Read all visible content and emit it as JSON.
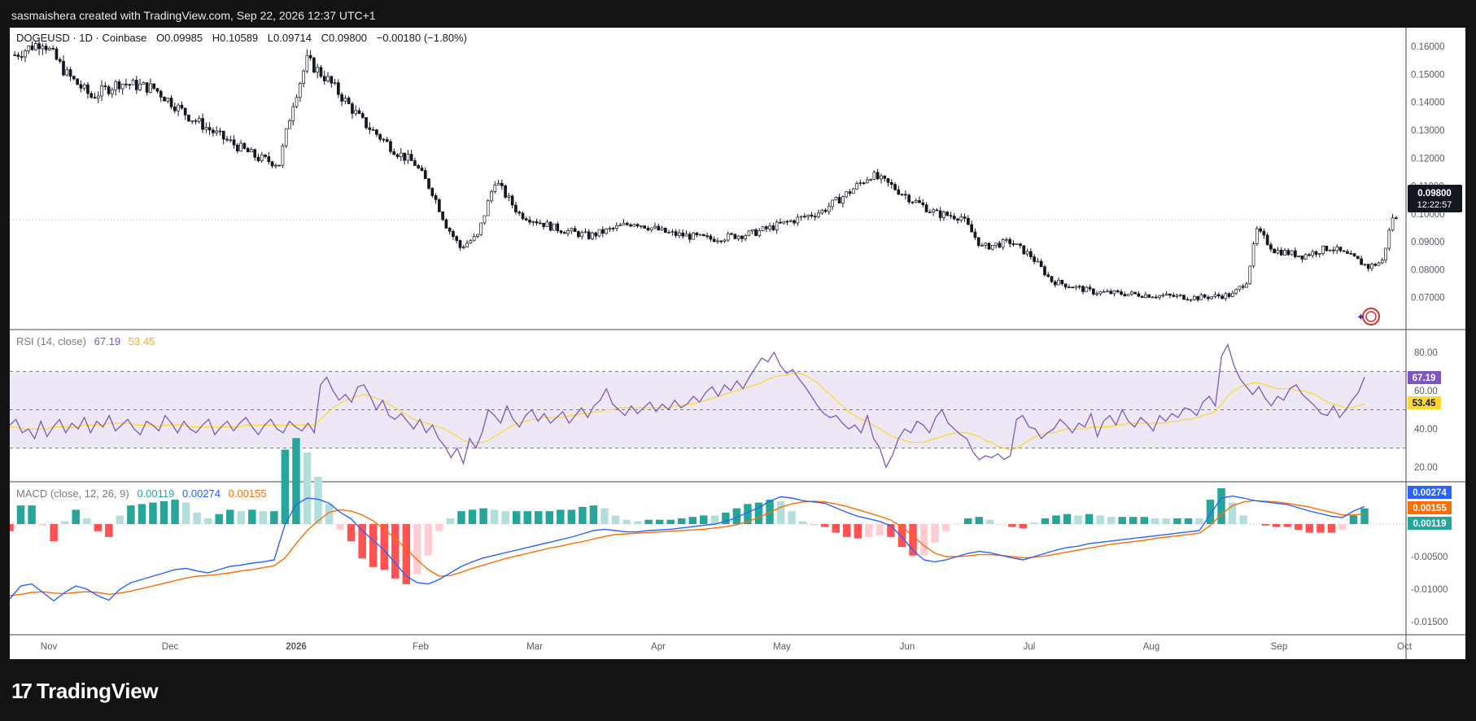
{
  "header": {
    "text": "sasmaishera created with TradingView.com, Sep 22, 2026 12:37 UTC+1"
  },
  "footer": {
    "brand": "TradingView",
    "logo_glyph": "17"
  },
  "legend": {
    "symbol": "DOGEUSD · 1D · Coinbase",
    "o_label": "O",
    "o_value": "0.09985",
    "h_label": "H",
    "h_value": "0.10589",
    "l_label": "L",
    "l_value": "0.09714",
    "c_label": "C",
    "c_value": "0.09800",
    "change": "−0.00180 (−1.80%)"
  },
  "price_badge": {
    "price": "0.09800",
    "countdown": "12:22:57"
  },
  "rsi_legend": {
    "label": "RSI (14, close)",
    "rsi_value": "67.19",
    "ma_value": "53.45"
  },
  "macd_legend": {
    "label": "MACD (close, 12, 26, 9)",
    "hist_value": "0.00119",
    "macd_value": "0.00274",
    "signal_value": "0.00155"
  },
  "colors": {
    "up": "#ffffff",
    "down": "#131722",
    "wick": "#131722",
    "rsi_line": "#7e57c2",
    "rsi_ma": "#fdd835",
    "rsi_band": "#ede7f6",
    "macd_line": "#2962ff",
    "signal_line": "#ff6d00",
    "hist_pos_strong": "#26a69a",
    "hist_pos_weak": "#b2dfdb",
    "hist_neg_strong": "#ff5252",
    "hist_neg_weak": "#ffcdd2"
  },
  "chart_data": [
    {
      "type": "candlestick",
      "title": "DOGEUSD · 1D · Coinbase",
      "ylim": [
        0.06,
        0.165
      ],
      "y_ticks": [
        "0.16000",
        "0.15000",
        "0.14000",
        "0.13000",
        "0.12000",
        "0.11000",
        "0.10000",
        "0.09000",
        "0.08000",
        "0.07000"
      ],
      "x_ticks": [
        "Nov",
        "Dec",
        "2026",
        "Feb",
        "Mar",
        "Apr",
        "May",
        "Jun",
        "Jul",
        "Aug",
        "Sep",
        "Oct"
      ],
      "last_price": 0.098,
      "grid": false,
      "close_path": [
        [
          0,
          0.157
        ],
        [
          8,
          0.162
        ],
        [
          15,
          0.15
        ],
        [
          22,
          0.142
        ],
        [
          30,
          0.147
        ],
        [
          40,
          0.145
        ],
        [
          50,
          0.135
        ],
        [
          60,
          0.127
        ],
        [
          70,
          0.12
        ],
        [
          76,
          0.118
        ],
        [
          80,
          0.14
        ],
        [
          84,
          0.155
        ],
        [
          90,
          0.148
        ],
        [
          100,
          0.133
        ],
        [
          110,
          0.122
        ],
        [
          115,
          0.118
        ],
        [
          120,
          0.108
        ],
        [
          124,
          0.096
        ],
        [
          128,
          0.088
        ],
        [
          133,
          0.092
        ],
        [
          138,
          0.112
        ],
        [
          145,
          0.1
        ],
        [
          155,
          0.095
        ],
        [
          165,
          0.092
        ],
        [
          178,
          0.097
        ],
        [
          188,
          0.093
        ],
        [
          200,
          0.091
        ],
        [
          212,
          0.093
        ],
        [
          222,
          0.097
        ],
        [
          232,
          0.101
        ],
        [
          240,
          0.108
        ],
        [
          246,
          0.114
        ],
        [
          252,
          0.11
        ],
        [
          258,
          0.105
        ],
        [
          265,
          0.1
        ],
        [
          272,
          0.099
        ],
        [
          278,
          0.088
        ],
        [
          286,
          0.09
        ],
        [
          292,
          0.085
        ],
        [
          298,
          0.076
        ],
        [
          310,
          0.072
        ],
        [
          325,
          0.071
        ],
        [
          340,
          0.07
        ],
        [
          350,
          0.071
        ],
        [
          354,
          0.076
        ],
        [
          357,
          0.094
        ],
        [
          362,
          0.087
        ],
        [
          370,
          0.085
        ],
        [
          378,
          0.088
        ],
        [
          385,
          0.084
        ],
        [
          389,
          0.081
        ],
        [
          393,
          0.083
        ],
        [
          396,
          0.099
        ],
        [
          397,
          0.098
        ]
      ],
      "n_days": 398
    },
    {
      "type": "line",
      "title": "RSI (14, close)",
      "ylim": [
        15,
        88
      ],
      "y_ticks": [
        "80.00",
        "60.00",
        "40.00",
        "20.00"
      ],
      "levels": [
        70,
        50,
        30
      ],
      "series": [
        {
          "name": "RSI",
          "values": [
            42,
            45,
            38,
            40,
            35,
            44,
            36,
            41,
            45,
            38,
            43,
            40,
            46,
            38,
            44,
            41,
            47,
            39,
            42,
            45,
            40,
            37,
            44,
            42,
            39,
            47,
            43,
            38,
            44,
            40,
            38,
            42,
            45,
            37,
            41,
            44,
            39,
            43,
            46,
            41,
            37,
            42,
            45,
            40,
            38,
            44,
            41,
            39,
            43,
            38,
            63,
            67,
            60,
            55,
            58,
            54,
            62,
            63,
            57,
            50,
            55,
            47,
            45,
            48,
            44,
            40,
            45,
            38,
            42,
            35,
            31,
            25,
            30,
            22,
            35,
            30,
            38,
            50,
            47,
            43,
            52,
            45,
            41,
            47,
            50,
            44,
            48,
            43,
            46,
            49,
            43,
            47,
            51,
            46,
            52,
            55,
            61,
            53,
            50,
            47,
            52,
            48,
            51,
            54,
            49,
            53,
            50,
            55,
            51,
            53,
            57,
            54,
            59,
            62,
            57,
            63,
            60,
            65,
            61,
            67,
            72,
            77,
            75,
            80,
            73,
            69,
            71,
            66,
            62,
            57,
            52,
            48,
            46,
            47,
            43,
            40,
            42,
            38,
            47,
            35,
            30,
            20,
            26,
            35,
            40,
            38,
            44,
            42,
            38,
            46,
            50,
            43,
            40,
            37,
            35,
            28,
            24,
            26,
            25,
            27,
            24,
            26,
            45,
            47,
            41,
            40,
            35,
            38,
            40,
            45,
            42,
            38,
            43,
            41,
            48,
            36,
            44,
            47,
            42,
            50,
            44,
            41,
            46,
            43,
            39,
            47,
            44,
            48,
            46,
            51,
            50,
            47,
            54,
            57,
            52,
            78,
            84,
            73,
            66,
            62,
            58,
            62,
            56,
            52,
            57,
            55,
            61,
            63,
            58,
            55,
            52,
            48,
            47,
            52,
            46,
            50,
            55,
            59,
            67
          ]
        },
        {
          "name": "MA",
          "values": [
            41,
            41,
            40,
            40,
            40,
            40,
            40,
            41,
            41,
            41,
            41,
            41,
            42,
            42,
            42,
            42,
            43,
            43,
            43,
            43,
            42,
            42,
            42,
            42,
            41,
            42,
            42,
            42,
            42,
            41,
            41,
            41,
            41,
            41,
            41,
            41,
            41,
            41,
            42,
            42,
            42,
            42,
            42,
            42,
            42,
            42,
            42,
            42,
            42,
            42,
            45,
            48,
            51,
            53,
            55,
            56,
            57,
            58,
            57,
            56,
            55,
            53,
            51,
            49,
            47,
            45,
            44,
            43,
            42,
            41,
            40,
            38,
            36,
            34,
            33,
            33,
            33,
            34,
            36,
            38,
            40,
            42,
            43,
            44,
            45,
            45,
            46,
            46,
            46,
            46,
            47,
            47,
            48,
            48,
            49,
            49,
            50,
            50,
            51,
            51,
            51,
            51,
            51,
            51,
            51,
            51,
            51,
            52,
            52,
            53,
            53,
            54,
            55,
            56,
            57,
            58,
            59,
            60,
            61,
            62,
            63,
            64,
            66,
            67,
            68,
            68,
            69,
            69,
            68,
            66,
            64,
            61,
            58,
            55,
            52,
            49,
            47,
            45,
            44,
            42,
            40,
            38,
            36,
            35,
            34,
            33,
            33,
            33,
            34,
            35,
            36,
            37,
            38,
            38,
            38,
            37,
            36,
            34,
            33,
            31,
            30,
            29,
            30,
            32,
            34,
            36,
            37,
            38,
            38,
            39,
            40,
            40,
            40,
            40,
            41,
            41,
            41,
            41,
            42,
            42,
            43,
            43,
            43,
            43,
            43,
            43,
            43,
            44,
            44,
            45,
            45,
            46,
            47,
            48,
            49,
            53,
            57,
            60,
            62,
            63,
            64,
            64,
            63,
            62,
            61,
            61,
            61,
            60,
            60,
            59,
            58,
            56,
            54,
            53,
            52,
            51,
            51,
            52,
            53
          ]
        }
      ]
    },
    {
      "type": "line",
      "title": "MACD (close, 12, 26, 9)",
      "ylim": [
        -0.0165,
        0.0055
      ],
      "y_ticks": [
        "0.00000",
        "-0.00500",
        "-0.01000",
        "-0.01500"
      ],
      "series": [
        {
          "name": "MACD",
          "values": [
            -0.0115,
            -0.0095,
            -0.0092,
            -0.0105,
            -0.0118,
            -0.0105,
            -0.0095,
            -0.01,
            -0.011,
            -0.0117,
            -0.01,
            -0.009,
            -0.0085,
            -0.008,
            -0.0075,
            -0.007,
            -0.0068,
            -0.0072,
            -0.0075,
            -0.007,
            -0.0065,
            -0.0063,
            -0.006,
            -0.0058,
            -0.0055,
            0.0,
            0.003,
            0.004,
            0.0038,
            0.0032,
            0.0018,
            0.0008,
            -0.001,
            -0.0025,
            -0.004,
            -0.006,
            -0.008,
            -0.009,
            -0.0092,
            -0.0085,
            -0.0075,
            -0.0065,
            -0.0058,
            -0.0052,
            -0.0048,
            -0.0044,
            -0.004,
            -0.0036,
            -0.0032,
            -0.0028,
            -0.0024,
            -0.002,
            -0.0015,
            -0.001,
            -0.0008,
            -0.001,
            -0.0012,
            -0.0012,
            -0.001,
            -0.0009,
            -0.0008,
            -0.0006,
            -0.0004,
            -0.0002,
            0.0,
            0.0004,
            0.001,
            0.0018,
            0.0025,
            0.0035,
            0.0042,
            0.004,
            0.0036,
            0.0034,
            0.0032,
            0.0025,
            0.0018,
            0.0012,
            0.0008,
            0.0004,
            -0.0003,
            -0.002,
            -0.004,
            -0.0055,
            -0.0058,
            -0.0055,
            -0.005,
            -0.0045,
            -0.0042,
            -0.0044,
            -0.0048,
            -0.0052,
            -0.0055,
            -0.005,
            -0.0045,
            -0.004,
            -0.0036,
            -0.0034,
            -0.003,
            -0.0028,
            -0.0026,
            -0.0024,
            -0.0022,
            -0.002,
            -0.0018,
            -0.0016,
            -0.0014,
            -0.0012,
            -0.001,
            0.0015,
            0.004,
            0.0043,
            0.004,
            0.0036,
            0.0034,
            0.0032,
            0.003,
            0.0025,
            0.002,
            0.0016,
            0.0012,
            0.001,
            0.002,
            0.0027
          ]
        },
        {
          "name": "Signal",
          "values": [
            -0.011,
            -0.0108,
            -0.0105,
            -0.0104,
            -0.0106,
            -0.0107,
            -0.0105,
            -0.0104,
            -0.0105,
            -0.0108,
            -0.0106,
            -0.0103,
            -0.0099,
            -0.0095,
            -0.0091,
            -0.0087,
            -0.0083,
            -0.008,
            -0.0079,
            -0.0077,
            -0.0075,
            -0.0072,
            -0.007,
            -0.0067,
            -0.0064,
            -0.0052,
            -0.003,
            -0.001,
            0.0005,
            0.0018,
            0.0022,
            0.002,
            0.0014,
            0.0005,
            -0.0008,
            -0.0022,
            -0.0038,
            -0.0055,
            -0.007,
            -0.008,
            -0.0079,
            -0.0074,
            -0.0068,
            -0.0063,
            -0.0058,
            -0.0053,
            -0.0049,
            -0.0045,
            -0.0041,
            -0.0037,
            -0.0034,
            -0.003,
            -0.0027,
            -0.0023,
            -0.0019,
            -0.0016,
            -0.0015,
            -0.0014,
            -0.0013,
            -0.0012,
            -0.0011,
            -0.001,
            -0.0009,
            -0.0008,
            -0.0006,
            -0.0004,
            -0.0001,
            0.0004,
            0.001,
            0.0018,
            0.0026,
            0.0031,
            0.0034,
            0.0035,
            0.0034,
            0.0031,
            0.0027,
            0.0022,
            0.0017,
            0.0012,
            0.0006,
            -0.0004,
            -0.0018,
            -0.0033,
            -0.0045,
            -0.005,
            -0.005,
            -0.0049,
            -0.0047,
            -0.0047,
            -0.0048,
            -0.005,
            -0.0052,
            -0.0051,
            -0.0049,
            -0.0046,
            -0.0043,
            -0.004,
            -0.0037,
            -0.0034,
            -0.0031,
            -0.0029,
            -0.0027,
            -0.0025,
            -0.0022,
            -0.002,
            -0.0018,
            -0.0016,
            -0.0014,
            -0.0002,
            0.0015,
            0.0028,
            0.0034,
            0.0036,
            0.0035,
            0.0034,
            0.0032,
            0.0029,
            0.0026,
            0.0022,
            0.0018,
            0.0014,
            0.0014,
            0.0016
          ]
        }
      ]
    }
  ]
}
